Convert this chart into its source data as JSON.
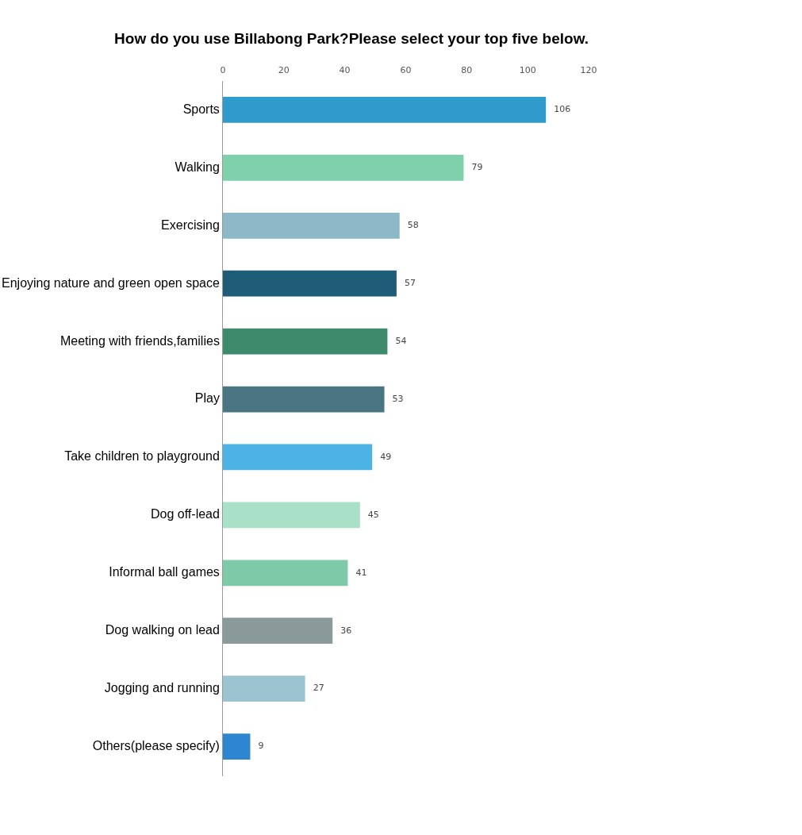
{
  "chart_data": {
    "type": "bar",
    "orientation": "horizontal",
    "title": "How do you use Billabong Park?Please select your top five below.",
    "categories": [
      "Sports",
      "Walking",
      "Exercising",
      "Enjoying nature and green open space",
      "Meeting with friends,families",
      "Play",
      "Take children to playground",
      "Dog off-lead",
      "Informal ball games",
      "Dog walking on lead",
      "Jogging and running",
      "Others(please specify)"
    ],
    "values": [
      106,
      79,
      58,
      57,
      54,
      53,
      49,
      45,
      41,
      36,
      27,
      9
    ],
    "colors": [
      "#2e9bcb",
      "#7fd1ae",
      "#8db8c8",
      "#1f5c78",
      "#3e8a6c",
      "#4a7582",
      "#4db3e6",
      "#a8e0c8",
      "#7ec9a8",
      "#8a9a9a",
      "#9cc4d0",
      "#2f86d0"
    ],
    "xlim": [
      0,
      120
    ],
    "xticks": [
      0,
      20,
      40,
      60,
      80,
      100,
      120
    ],
    "data_labels": true
  }
}
